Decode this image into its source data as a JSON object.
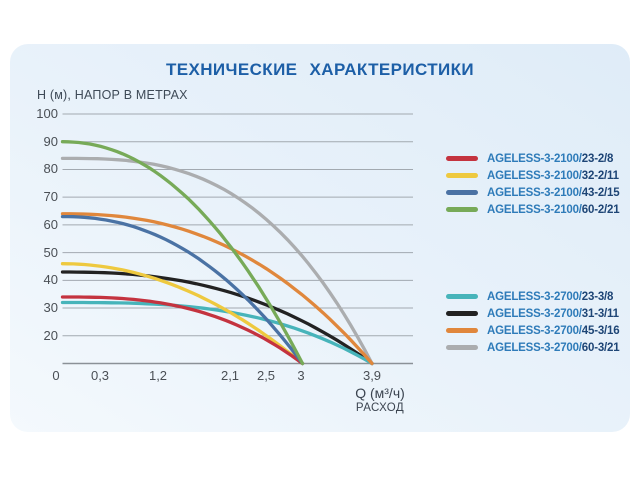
{
  "title": "ТЕХНИЧЕСКИЕ  ХАРАКТЕРИСТИКИ",
  "y_axis_label": "Н (м), НАПОР В МЕТРАХ",
  "x_axis_label": {
    "line1": "Q (м³/ч)",
    "line2": "РАСХОД"
  },
  "colors": {
    "title": "#1d5fa7",
    "legend_prefix": "#2e7bb9",
    "legend_suffix": "#1e4576",
    "axis_text": "#3e4a57",
    "tick_text": "#4a4f55",
    "gridline": "#a2a9b0",
    "axis_line": "#8b9197",
    "card_bg_from": "#f4f9fd",
    "card_bg_to": "#dfecf8"
  },
  "chart_data": {
    "type": "line",
    "title": "ТЕХНИЧЕСКИЕ ХАРАКТЕРИСТИКИ",
    "xlabel": "Q (м³/ч), РАСХОД",
    "ylabel": "Н (м), НАПОР В МЕТРАХ",
    "x_tick_labels": [
      "0",
      "0,3",
      "1,2",
      "2,1",
      "2,5",
      "3",
      "3,9"
    ],
    "y_tick_labels": [
      100,
      90,
      80,
      70,
      60,
      50,
      40,
      30,
      20
    ],
    "ylim": [
      10,
      100
    ],
    "xlim": [
      0,
      4.4
    ],
    "grid": "horizontal-only",
    "legend_position": "right-two-groups",
    "legend_groups": [
      [
        0,
        1,
        2,
        3
      ],
      [
        4,
        5,
        6,
        7
      ]
    ],
    "series": [
      {
        "name": "AGELESS-3-2100/23-2/8",
        "prefix": "AGELESS-3-2100/",
        "suffix": "23-2/8",
        "color": "#c4333f",
        "group": "2100",
        "head_start_m": 34,
        "flow_max_m3h": 3.0,
        "points_q_h": [
          [
            0,
            34
          ],
          [
            1,
            33
          ],
          [
            2,
            27
          ],
          [
            2.5,
            20
          ],
          [
            3,
            10
          ]
        ]
      },
      {
        "name": "AGELESS-3-2100/32-2/11",
        "prefix": "AGELESS-3-2100/",
        "suffix": "32-2/11",
        "color": "#eec93f",
        "group": "2100",
        "head_start_m": 46,
        "flow_max_m3h": 3.0,
        "points_q_h": [
          [
            0,
            46
          ],
          [
            1,
            41
          ],
          [
            2,
            29
          ],
          [
            2.5,
            21
          ],
          [
            3,
            10
          ]
        ]
      },
      {
        "name": "AGELESS-3-2100/43-2/15",
        "prefix": "AGELESS-3-2100/",
        "suffix": "43-2/15",
        "color": "#4a72a4",
        "group": "2100",
        "head_start_m": 63,
        "flow_max_m3h": 3.0,
        "points_q_h": [
          [
            0,
            63
          ],
          [
            1,
            53
          ],
          [
            2,
            34
          ],
          [
            2.5,
            23
          ],
          [
            3,
            10
          ]
        ]
      },
      {
        "name": "AGELESS-3-2100/60-2/21",
        "prefix": "AGELESS-3-2100/",
        "suffix": "60-2/21",
        "color": "#77aa58",
        "group": "2100",
        "head_start_m": 90,
        "flow_max_m3h": 3.0,
        "points_q_h": [
          [
            0,
            90
          ],
          [
            1,
            76
          ],
          [
            2,
            48
          ],
          [
            2.5,
            31
          ],
          [
            3,
            10
          ]
        ]
      },
      {
        "name": "AGELESS-3-2700/23-3/8",
        "prefix": "AGELESS-3-2700/",
        "suffix": "23-3/8",
        "color": "#47b4ba",
        "group": "2700",
        "head_start_m": 32,
        "flow_max_m3h": 3.9,
        "points_q_h": [
          [
            0,
            32
          ],
          [
            1,
            31
          ],
          [
            2,
            29
          ],
          [
            3,
            23
          ],
          [
            3.9,
            10
          ]
        ]
      },
      {
        "name": "AGELESS-3-2700/31-3/11",
        "prefix": "AGELESS-3-2700/",
        "suffix": "31-3/11",
        "color": "#222222",
        "group": "2700",
        "head_start_m": 43,
        "flow_max_m3h": 3.9,
        "points_q_h": [
          [
            0,
            43
          ],
          [
            1,
            41
          ],
          [
            2,
            35
          ],
          [
            3,
            25
          ],
          [
            3.9,
            10
          ]
        ]
      },
      {
        "name": "AGELESS-3-2700/45-3/16",
        "prefix": "AGELESS-3-2700/",
        "suffix": "45-3/16",
        "color": "#e0873c",
        "group": "2700",
        "head_start_m": 64,
        "flow_max_m3h": 3.9,
        "points_q_h": [
          [
            0,
            64
          ],
          [
            1,
            60
          ],
          [
            2,
            49
          ],
          [
            3,
            31
          ],
          [
            3.9,
            10
          ]
        ]
      },
      {
        "name": "AGELESS-3-2700/60-3/21",
        "prefix": "AGELESS-3-2700/",
        "suffix": "60-3/21",
        "color": "#abadaf",
        "group": "2700",
        "head_start_m": 84,
        "flow_max_m3h": 3.9,
        "points_q_h": [
          [
            0,
            84
          ],
          [
            1,
            81
          ],
          [
            2,
            66
          ],
          [
            3,
            38
          ],
          [
            3.9,
            10
          ]
        ]
      }
    ]
  }
}
